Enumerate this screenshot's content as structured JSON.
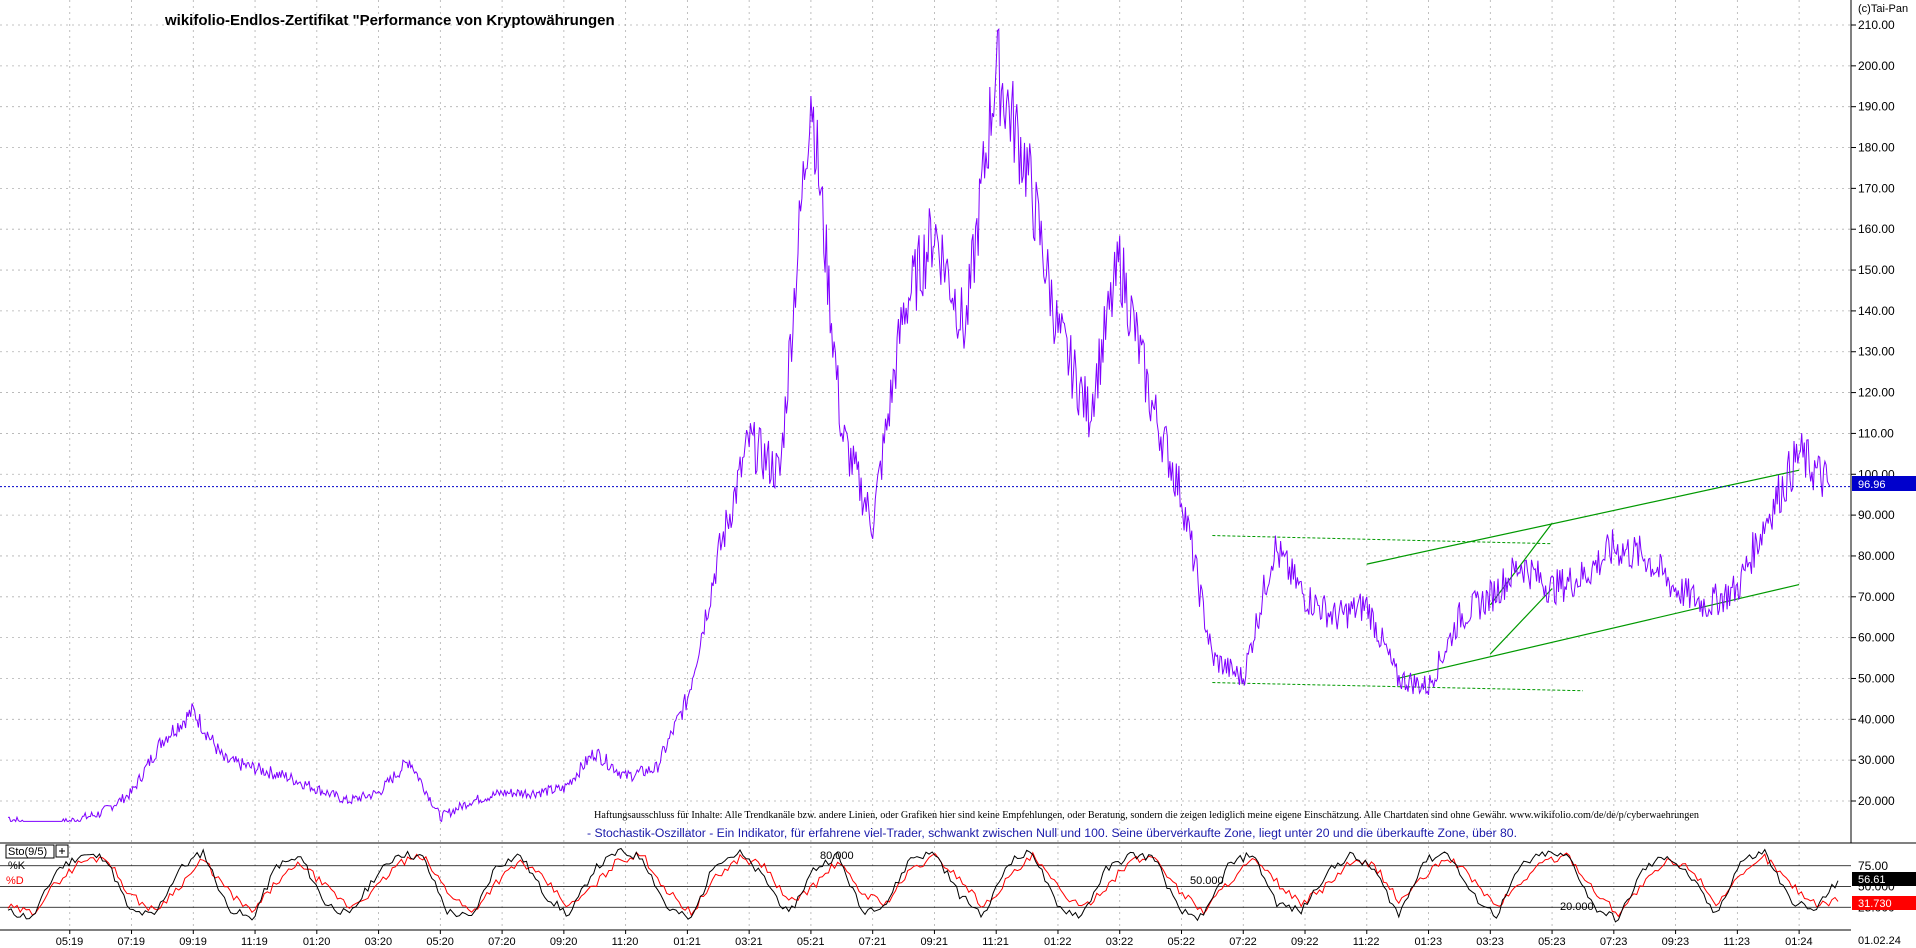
{
  "title": "wikifolio-Endlos-Zertifikat \"Performance von Kryptowährungen",
  "copyright": "(c)Tai-Pan",
  "price_label": "96.96",
  "disclaimer": "Haftungsausschluss für Inhalte: Alle Trendkanäle bzw. andere Linien, oder Grafiken hier sind keine Empfehlungen, oder Beratung, sondern die zeigen lediglich meine eigene Einschätzung. Alle Chartdaten sind ohne Gewähr.  www.wikifolio.com/de/de/p/cyberwaehrungen",
  "stoch_note": "- Stochastik-Oszillator - Ein Indikator, für erfahrene viel-Trader, schwankt zwischen Null und 100. Seine überverkaufte Zone, liegt unter 20 und die überkaufte Zone, über 80.",
  "colors": {
    "price": "#7f00ff",
    "channel": "#009900",
    "k": "#000000",
    "d": "#ff0000",
    "ref": "#0000cc",
    "label_bg": "#0000cc"
  },
  "chart_data": [
    {
      "type": "line",
      "ylim": [
        15,
        212
      ],
      "y_ticks": [
        "20.000",
        "30.000",
        "40.000",
        "50.000",
        "60.000",
        "70.000",
        "80.000",
        "90.000",
        "100.00",
        "110.00",
        "120.00",
        "130.00",
        "140.00",
        "150.00",
        "160.00",
        "170.00",
        "180.00",
        "190.00",
        "200.00",
        "210.00"
      ],
      "x_ticks": [
        "05:19",
        "07:19",
        "09:19",
        "11:19",
        "01:20",
        "03:20",
        "05:20",
        "07:20",
        "09:20",
        "11:20",
        "01:21",
        "03:21",
        "05:21",
        "07:21",
        "09:21",
        "11:21",
        "01:22",
        "03:22",
        "05:22",
        "07:22",
        "09:22",
        "11:22",
        "01:23",
        "03:23",
        "05:23",
        "07:23",
        "09:23",
        "11:23",
        "01:24"
      ],
      "last_date": "01.02.24",
      "reference_level": 96.96,
      "series": [
        {
          "x": [
            "2019-03",
            "2019-04",
            "2019-05",
            "2019-06",
            "2019-07",
            "2019-08",
            "2019-09",
            "2019-10",
            "2019-11",
            "2019-12",
            "2020-01",
            "2020-02",
            "2020-03",
            "2020-04",
            "2020-05",
            "2020-06",
            "2020-07",
            "2020-08",
            "2020-09",
            "2020-10",
            "2020-11",
            "2020-12",
            "2021-01",
            "2021-02",
            "2021-03",
            "2021-04",
            "2021-05",
            "2021-06",
            "2021-07",
            "2021-08",
            "2021-09",
            "2021-10",
            "2021-11",
            "2021-12",
            "2022-01",
            "2022-02",
            "2022-03",
            "2022-04",
            "2022-05",
            "2022-06",
            "2022-07",
            "2022-08",
            "2022-09",
            "2022-10",
            "2022-11",
            "2022-12",
            "2023-01",
            "2023-02",
            "2023-03",
            "2023-04",
            "2023-05",
            "2023-06",
            "2023-07",
            "2023-08",
            "2023-09",
            "2023-10",
            "2023-11",
            "2023-12",
            "2024-01",
            "2024-02"
          ],
          "values": [
            16,
            13,
            15,
            17,
            22,
            35,
            42,
            30,
            28,
            26,
            23,
            20,
            22,
            30,
            16,
            20,
            22,
            22,
            23,
            32,
            26,
            28,
            45,
            80,
            108,
            100,
            195,
            110,
            88,
            140,
            160,
            135,
            200,
            175,
            135,
            115,
            152,
            118,
            95,
            55,
            50,
            82,
            70,
            65,
            68,
            50,
            48,
            65,
            70,
            78,
            72,
            75,
            82,
            80,
            72,
            68,
            72,
            90,
            105,
            97
          ]
        }
      ],
      "channels": [
        {
          "name": "upper",
          "from": [
            "2022-11",
            78
          ],
          "to": [
            "2024-01",
            101
          ]
        },
        {
          "name": "lower",
          "from": [
            "2022-12",
            50
          ],
          "to": [
            "2024-01",
            73
          ]
        },
        {
          "name": "short-upper",
          "from": [
            "2023-03",
            68
          ],
          "to": [
            "2023-05",
            88
          ]
        },
        {
          "name": "short-lower",
          "from": [
            "2023-03",
            56
          ],
          "to": [
            "2023-05",
            72
          ]
        }
      ],
      "range_lines": [
        {
          "from": [
            "2022-06",
            85
          ],
          "to": [
            "2023-05",
            83
          ]
        },
        {
          "from": [
            "2022-06",
            49
          ],
          "to": [
            "2023-06",
            47
          ]
        }
      ]
    },
    {
      "type": "line",
      "name": "Sto(9/5)",
      "ylim": [
        0,
        100
      ],
      "levels": [
        "75.00",
        "50.000",
        "25.000"
      ],
      "level_values": [
        75,
        50,
        25
      ],
      "extra_labels": [
        "80.000",
        "50.000",
        "20.000"
      ],
      "series": [
        {
          "name": "%K",
          "last": "56.61",
          "values": [
            20,
            12,
            70,
            88,
            85,
            20,
            15,
            70,
            92,
            25,
            10,
            75,
            85,
            30,
            15,
            60,
            90,
            85,
            20,
            12,
            75,
            88,
            40,
            15,
            70,
            92,
            85,
            25,
            10,
            80,
            90,
            60,
            15,
            70,
            88,
            20,
            30,
            85,
            90,
            40,
            15,
            80,
            92,
            25,
            15,
            70,
            88,
            85,
            20,
            12,
            75,
            90,
            30,
            20,
            65,
            88,
            70,
            15,
            80,
            92,
            40,
            15,
            75,
            90,
            85,
            25,
            10,
            70,
            88,
            60,
            15,
            80,
            92,
            35,
            20,
            57
          ]
        },
        {
          "name": "%D",
          "last": "31.730",
          "values": [
            25,
            18,
            55,
            80,
            86,
            40,
            20,
            50,
            82,
            45,
            18,
            55,
            78,
            50,
            25,
            45,
            78,
            86,
            45,
            18,
            55,
            80,
            58,
            25,
            50,
            82,
            88,
            45,
            18,
            60,
            85,
            75,
            30,
            50,
            80,
            42,
            30,
            70,
            86,
            60,
            25,
            60,
            86,
            50,
            22,
            50,
            80,
            86,
            45,
            20,
            55,
            82,
            55,
            28,
            50,
            78,
            76,
            32,
            60,
            86,
            60,
            25,
            55,
            82,
            86,
            45,
            18,
            52,
            80,
            72,
            30,
            60,
            86,
            55,
            30,
            32
          ]
        }
      ]
    }
  ]
}
